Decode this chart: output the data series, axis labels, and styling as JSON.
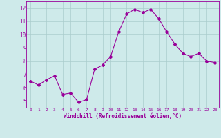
{
  "x": [
    0,
    1,
    2,
    3,
    4,
    5,
    6,
    7,
    8,
    9,
    10,
    11,
    12,
    13,
    14,
    15,
    16,
    17,
    18,
    19,
    20,
    21,
    22,
    23
  ],
  "y": [
    6.5,
    6.2,
    6.6,
    6.9,
    5.5,
    5.6,
    4.9,
    5.1,
    7.4,
    7.7,
    8.35,
    10.2,
    11.55,
    11.9,
    11.65,
    11.9,
    11.2,
    10.2,
    9.3,
    8.6,
    8.35,
    8.6,
    8.0,
    7.9
  ],
  "line_color": "#990099",
  "marker": "D",
  "marker_size": 2,
  "bg_color": "#ceeaea",
  "grid_color": "#aacccc",
  "xlabel": "Windchill (Refroidissement éolien,°C)",
  "xlabel_color": "#990099",
  "tick_color": "#990099",
  "ylim": [
    4.5,
    12.5
  ],
  "yticks": [
    5,
    6,
    7,
    8,
    9,
    10,
    11,
    12
  ],
  "xlim": [
    -0.5,
    23.5
  ],
  "xticks": [
    0,
    1,
    2,
    3,
    4,
    5,
    6,
    7,
    8,
    9,
    10,
    11,
    12,
    13,
    14,
    15,
    16,
    17,
    18,
    19,
    20,
    21,
    22,
    23
  ]
}
